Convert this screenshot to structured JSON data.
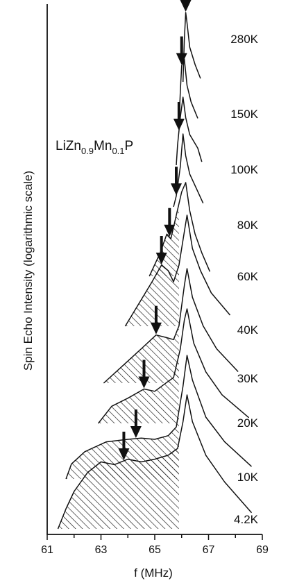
{
  "chart_data": {
    "type": "line",
    "title": "",
    "xlabel": "f (MHz)",
    "ylabel": "Spin Echo Intensity (logarithmic scale)",
    "xlim": [
      61,
      69
    ],
    "x_ticks": [
      "61",
      "63",
      "65",
      "67",
      "69"
    ],
    "annotation": {
      "main": "LiZn",
      "sub1": "0.9",
      "mid": "Mn",
      "sub2": "0.1",
      "end": "P"
    },
    "grid": false,
    "log_scale_y": true,
    "series": [
      {
        "name": "280K",
        "arrow_x": 66.15,
        "x": [
          66.05,
          66.1,
          66.15,
          66.2,
          66.3,
          66.5,
          66.7
        ],
        "y": [
          0.0,
          0.6,
          1.0,
          0.85,
          0.5,
          0.25,
          0.05
        ]
      },
      {
        "name": "150K",
        "arrow_x": 66.0,
        "x": [
          65.9,
          65.95,
          66.0,
          66.1,
          66.2,
          66.35,
          66.6
        ],
        "y": [
          0.0,
          0.5,
          0.9,
          1.0,
          0.6,
          0.35,
          0.1
        ]
      },
      {
        "name": "100K",
        "arrow_x": 65.9,
        "x": [
          65.8,
          65.85,
          65.95,
          66.05,
          66.15,
          66.3,
          66.6,
          66.75
        ],
        "y": [
          0.0,
          0.3,
          0.7,
          1.0,
          0.7,
          0.45,
          0.25,
          0.05
        ]
      },
      {
        "name": "80K",
        "arrow_x": 65.8,
        "x": [
          65.7,
          65.8,
          65.95,
          66.05,
          66.15,
          66.3,
          66.55,
          66.8
        ],
        "y": [
          0.0,
          0.15,
          0.55,
          1.0,
          0.7,
          0.45,
          0.25,
          0.05
        ]
      },
      {
        "name": "60K",
        "arrow_x": 65.55,
        "x": [
          64.8,
          65.2,
          65.45,
          65.6,
          65.8,
          66.0,
          66.15,
          66.3,
          66.5,
          66.75,
          67.05
        ],
        "y": [
          0.0,
          0.25,
          0.45,
          0.4,
          0.65,
          0.9,
          1.0,
          0.7,
          0.45,
          0.25,
          0.05
        ]
      },
      {
        "name": "40K",
        "arrow_x": 65.25,
        "x": [
          63.9,
          64.4,
          64.9,
          65.25,
          65.5,
          65.7,
          65.9,
          66.1,
          66.2,
          66.4,
          66.7,
          67.1,
          67.8
        ],
        "y": [
          0.0,
          0.2,
          0.4,
          0.55,
          0.5,
          0.4,
          0.55,
          0.85,
          1.0,
          0.7,
          0.5,
          0.3,
          0.1
        ]
      },
      {
        "name": "30K",
        "arrow_x": 65.05,
        "x": [
          63.1,
          63.8,
          64.5,
          65.05,
          65.4,
          65.7,
          65.9,
          66.1,
          66.2,
          66.4,
          66.8,
          67.3,
          68.1
        ],
        "y": [
          0.0,
          0.15,
          0.3,
          0.42,
          0.4,
          0.38,
          0.5,
          0.85,
          1.0,
          0.75,
          0.5,
          0.3,
          0.1
        ]
      },
      {
        "name": "20K",
        "arrow_x": 64.6,
        "x": [
          62.9,
          63.4,
          64.0,
          64.6,
          65.0,
          65.4,
          65.7,
          65.95,
          66.1,
          66.2,
          66.45,
          66.9,
          67.5,
          68.5
        ],
        "y": [
          0.0,
          0.15,
          0.22,
          0.3,
          0.28,
          0.35,
          0.4,
          0.65,
          0.9,
          1.0,
          0.7,
          0.45,
          0.25,
          0.05
        ]
      },
      {
        "name": "10K",
        "arrow_x": 64.3,
        "x": [
          61.7,
          61.9,
          62.4,
          63.2,
          64.0,
          64.5,
          65.0,
          65.5,
          65.8,
          66.05,
          66.2,
          66.4,
          66.9,
          67.6,
          68.6
        ],
        "y": [
          0.0,
          0.12,
          0.22,
          0.3,
          0.32,
          0.33,
          0.32,
          0.35,
          0.42,
          0.75,
          1.0,
          0.8,
          0.5,
          0.3,
          0.1
        ]
      },
      {
        "name": "4.2K",
        "arrow_x": 63.85,
        "x": [
          61.4,
          61.7,
          62.0,
          62.5,
          63.0,
          63.5,
          64.0,
          64.5,
          65.0,
          65.5,
          65.85,
          66.05,
          66.2,
          66.4,
          66.9,
          67.6,
          68.6
        ],
        "y": [
          0.0,
          0.15,
          0.28,
          0.42,
          0.5,
          0.48,
          0.52,
          0.5,
          0.52,
          0.55,
          0.6,
          0.8,
          1.0,
          0.8,
          0.55,
          0.35,
          0.12
        ]
      }
    ]
  }
}
